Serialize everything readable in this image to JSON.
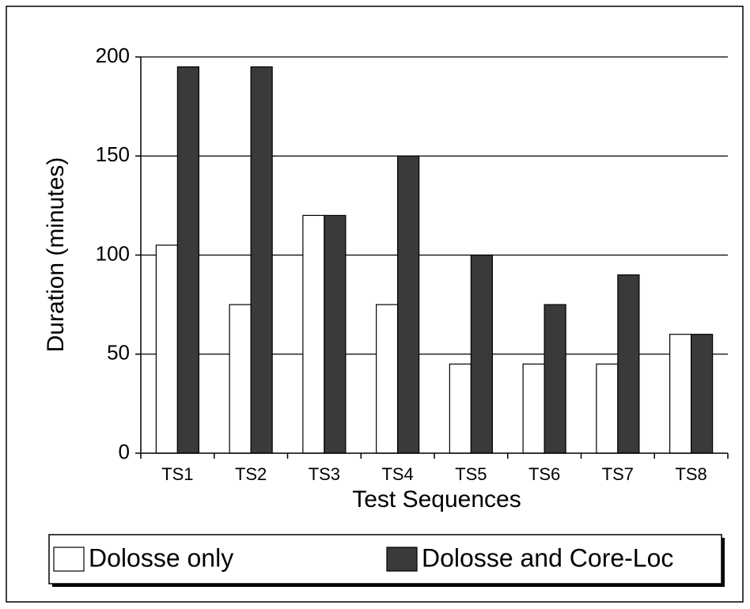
{
  "chart_data": {
    "type": "bar",
    "categories": [
      "TS1",
      "TS2",
      "TS3",
      "TS4",
      "TS5",
      "TS6",
      "TS7",
      "TS8"
    ],
    "series": [
      {
        "name": "Dolosse only",
        "color": "#ffffff",
        "values": [
          105,
          75,
          120,
          75,
          45,
          45,
          45,
          60
        ]
      },
      {
        "name": "Dolosse and Core-Loc",
        "color": "#3a3a3a",
        "values": [
          195,
          195,
          120,
          150,
          100,
          75,
          90,
          60
        ]
      }
    ],
    "xlabel": "Test Sequences",
    "ylabel": "Duration (minutes)",
    "ylim": [
      0,
      200
    ],
    "yticks": [
      0,
      50,
      100,
      150,
      200
    ],
    "grid": true,
    "legend": "bottom"
  }
}
